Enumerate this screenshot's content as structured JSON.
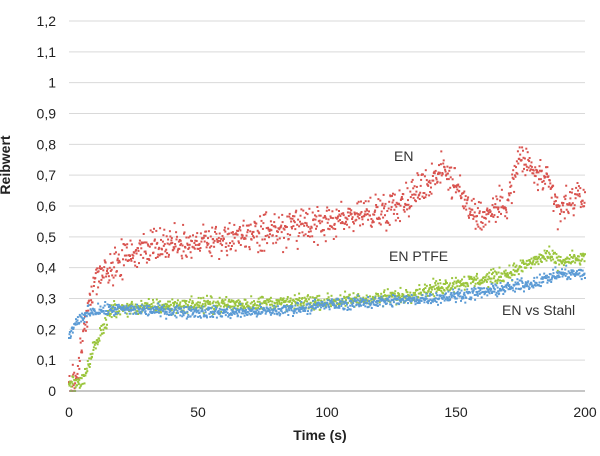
{
  "chart_data": {
    "type": "scatter",
    "title": "",
    "xlabel": "Time (s)",
    "ylabel": "Reibwert",
    "xlim": [
      0,
      200
    ],
    "ylim": [
      0,
      1.2
    ],
    "x_ticks": [
      "0",
      "50",
      "100",
      "150",
      "200"
    ],
    "y_ticks": [
      "0",
      "0,1",
      "0,2",
      "0,3",
      "0,4",
      "0,5",
      "0,6",
      "0,7",
      "0,8",
      "0,9",
      "1",
      "1,1",
      "1,2"
    ],
    "grid": "horizontal",
    "legend": "none (inline labels)",
    "series": [
      {
        "name": "EN",
        "color": "#d9534f",
        "spread": 0.05,
        "points": [
          [
            0,
            0.02
          ],
          [
            3,
            0.05
          ],
          [
            5,
            0.15
          ],
          [
            8,
            0.3
          ],
          [
            12,
            0.38
          ],
          [
            20,
            0.42
          ],
          [
            30,
            0.47
          ],
          [
            40,
            0.48
          ],
          [
            60,
            0.49
          ],
          [
            80,
            0.52
          ],
          [
            100,
            0.54
          ],
          [
            110,
            0.57
          ],
          [
            120,
            0.58
          ],
          [
            130,
            0.62
          ],
          [
            140,
            0.68
          ],
          [
            145,
            0.73
          ],
          [
            150,
            0.66
          ],
          [
            155,
            0.6
          ],
          [
            160,
            0.56
          ],
          [
            170,
            0.62
          ],
          [
            175,
            0.76
          ],
          [
            180,
            0.71
          ],
          [
            185,
            0.68
          ],
          [
            190,
            0.58
          ],
          [
            195,
            0.62
          ],
          [
            200,
            0.63
          ]
        ]
      },
      {
        "name": "EN PTFE",
        "color": "#9bc53d",
        "spread": 0.022,
        "points": [
          [
            0,
            0.02
          ],
          [
            5,
            0.03
          ],
          [
            8,
            0.1
          ],
          [
            12,
            0.18
          ],
          [
            16,
            0.26
          ],
          [
            25,
            0.27
          ],
          [
            50,
            0.28
          ],
          [
            80,
            0.285
          ],
          [
            100,
            0.29
          ],
          [
            120,
            0.3
          ],
          [
            130,
            0.31
          ],
          [
            140,
            0.33
          ],
          [
            150,
            0.35
          ],
          [
            160,
            0.36
          ],
          [
            170,
            0.38
          ],
          [
            180,
            0.42
          ],
          [
            185,
            0.44
          ],
          [
            190,
            0.42
          ],
          [
            200,
            0.43
          ]
        ]
      },
      {
        "name": "EN vs Stahl",
        "color": "#5b9bd5",
        "spread": 0.018,
        "points": [
          [
            0,
            0.18
          ],
          [
            3,
            0.22
          ],
          [
            8,
            0.26
          ],
          [
            20,
            0.265
          ],
          [
            40,
            0.26
          ],
          [
            60,
            0.255
          ],
          [
            80,
            0.26
          ],
          [
            100,
            0.28
          ],
          [
            120,
            0.29
          ],
          [
            140,
            0.3
          ],
          [
            160,
            0.32
          ],
          [
            180,
            0.35
          ],
          [
            190,
            0.38
          ],
          [
            200,
            0.38
          ]
        ]
      }
    ]
  }
}
